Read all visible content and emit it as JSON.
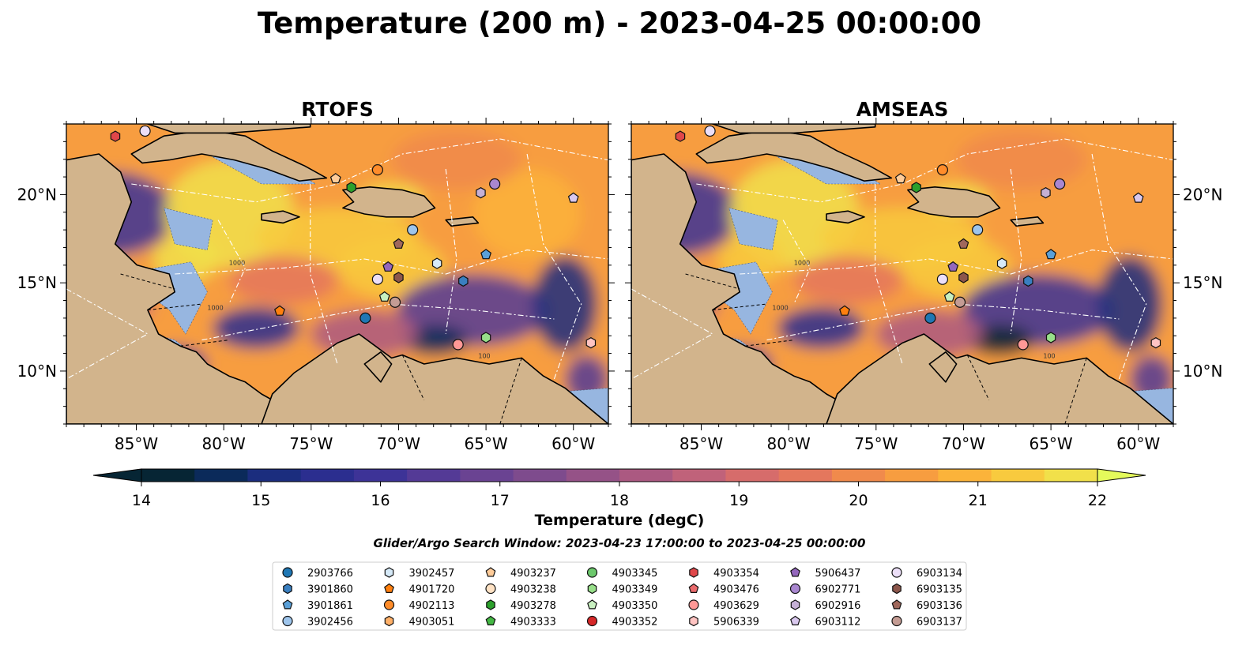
{
  "title": "Temperature (200 m) - 2023-04-25 00:00:00",
  "panels": [
    {
      "title": "RTOFS",
      "tint": 0.0
    },
    {
      "title": "AMSEAS",
      "tint": 0.25
    }
  ],
  "lon_ticks": [
    "85°W",
    "80°W",
    "75°W",
    "70°W",
    "65°W",
    "60°W"
  ],
  "lat_ticks": [
    "20°N",
    "15°N",
    "10°N"
  ],
  "colorbar": {
    "label": "Temperature (degC)",
    "ticks": [
      "14",
      "15",
      "16",
      "17",
      "18",
      "19",
      "20",
      "21",
      "22"
    ],
    "colors": [
      "#062534",
      "#0b2a5a",
      "#1b2d7e",
      "#2b2e8f",
      "#3d3397",
      "#543a96",
      "#6a4392",
      "#7e4b8d",
      "#955287",
      "#ab5981",
      "#c0627a",
      "#d66c6b",
      "#e4775d",
      "#f08a4c",
      "#f79d40",
      "#fbb33a",
      "#f8ca3e",
      "#f1e04a"
    ],
    "over_color": "#e4fa5b",
    "under_color": "#062534"
  },
  "search_window": "Glider/Argo Search Window: 2023-04-23 17:00:00 to 2023-04-25 00:00:00",
  "legend": [
    {
      "label": "2903766",
      "color": "#1f77b4",
      "marker": "circle"
    },
    {
      "label": "3901860",
      "color": "#3a7fc0",
      "marker": "hexagon"
    },
    {
      "label": "3901861",
      "color": "#5aa0d8",
      "marker": "pentagon"
    },
    {
      "label": "3902456",
      "color": "#9ec5ec",
      "marker": "circle"
    },
    {
      "label": "3902457",
      "color": "#d6eaf8",
      "marker": "hexagon"
    },
    {
      "label": "4901720",
      "color": "#ff7f0e",
      "marker": "pentagon"
    },
    {
      "label": "4902113",
      "color": "#ff8c2a",
      "marker": "circle"
    },
    {
      "label": "4903051",
      "color": "#ffb068",
      "marker": "hexagon"
    },
    {
      "label": "4903237",
      "color": "#ffcc99",
      "marker": "pentagon"
    },
    {
      "label": "4903238",
      "color": "#ffe2c4",
      "marker": "circle"
    },
    {
      "label": "4903278",
      "color": "#2ca02c",
      "marker": "hexagon"
    },
    {
      "label": "4903333",
      "color": "#44b844",
      "marker": "pentagon"
    },
    {
      "label": "4903345",
      "color": "#6cc86c",
      "marker": "circle"
    },
    {
      "label": "4903349",
      "color": "#98df8a",
      "marker": "hexagon"
    },
    {
      "label": "4903350",
      "color": "#c8f0c0",
      "marker": "pentagon"
    },
    {
      "label": "4903352",
      "color": "#d62728",
      "marker": "circle"
    },
    {
      "label": "4903354",
      "color": "#e0474a",
      "marker": "hexagon"
    },
    {
      "label": "4903476",
      "color": "#ea6a6c",
      "marker": "pentagon"
    },
    {
      "label": "4903629",
      "color": "#ff9896",
      "marker": "circle"
    },
    {
      "label": "5906339",
      "color": "#ffc4c2",
      "marker": "hexagon"
    },
    {
      "label": "5906437",
      "color": "#9467bd",
      "marker": "pentagon"
    },
    {
      "label": "6902771",
      "color": "#a987d0",
      "marker": "circle"
    },
    {
      "label": "6902916",
      "color": "#c5b0d5",
      "marker": "hexagon"
    },
    {
      "label": "6903112",
      "color": "#d9c8ee",
      "marker": "pentagon"
    },
    {
      "label": "6903134",
      "color": "#ecdff8",
      "marker": "circle"
    },
    {
      "label": "6903135",
      "color": "#8c564b",
      "marker": "hexagon"
    },
    {
      "label": "6903136",
      "color": "#a0685c",
      "marker": "pentagon"
    },
    {
      "label": "6903137",
      "color": "#c49c94",
      "marker": "circle"
    }
  ],
  "chart_data": {
    "type": "heatmap",
    "title": "Temperature (200 m) - 2023-04-25 00:00:00",
    "variable": "Temperature (degC)",
    "depth_m": 200,
    "vmin": 14,
    "vmax": 22,
    "lon_range": [
      -89,
      -58
    ],
    "lat_range": [
      7,
      24
    ],
    "models": [
      "RTOFS",
      "AMSEAS"
    ],
    "contour_labels": [
      "100",
      "1000"
    ],
    "floats": [
      {
        "id": "4903354",
        "lon": -86.2,
        "lat": 23.3
      },
      {
        "id": "6903134",
        "lon": -84.5,
        "lat": 23.6
      },
      {
        "id": "4903237",
        "lon": -73.6,
        "lat": 20.9
      },
      {
        "id": "4902113",
        "lon": -71.2,
        "lat": 21.4
      },
      {
        "id": "4903278",
        "lon": -72.7,
        "lat": 20.4
      },
      {
        "id": "6902916",
        "lon": -65.3,
        "lat": 20.1
      },
      {
        "id": "6902771",
        "lon": -64.5,
        "lat": 20.6
      },
      {
        "id": "6903112",
        "lon": -60.0,
        "lat": 19.8
      },
      {
        "id": "3902456",
        "lon": -69.2,
        "lat": 18.0
      },
      {
        "id": "6903136",
        "lon": -70.0,
        "lat": 17.2
      },
      {
        "id": "3901861",
        "lon": -65.0,
        "lat": 16.6
      },
      {
        "id": "3902457",
        "lon": -67.8,
        "lat": 16.1
      },
      {
        "id": "5906437",
        "lon": -70.6,
        "lat": 15.9
      },
      {
        "id": "6903135",
        "lon": -70.0,
        "lat": 15.3
      },
      {
        "id": "6903134",
        "lon": -71.2,
        "lat": 15.2
      },
      {
        "id": "3901860",
        "lon": -66.3,
        "lat": 15.1
      },
      {
        "id": "4903350",
        "lon": -70.8,
        "lat": 14.2
      },
      {
        "id": "6903137",
        "lon": -70.2,
        "lat": 13.9
      },
      {
        "id": "4901720",
        "lon": -76.8,
        "lat": 13.4
      },
      {
        "id": "2903766",
        "lon": -71.9,
        "lat": 13.0
      },
      {
        "id": "4903349",
        "lon": -65.0,
        "lat": 11.9
      },
      {
        "id": "4903629",
        "lon": -66.6,
        "lat": 11.5
      },
      {
        "id": "5906339",
        "lon": -59.0,
        "lat": 11.6
      }
    ]
  }
}
